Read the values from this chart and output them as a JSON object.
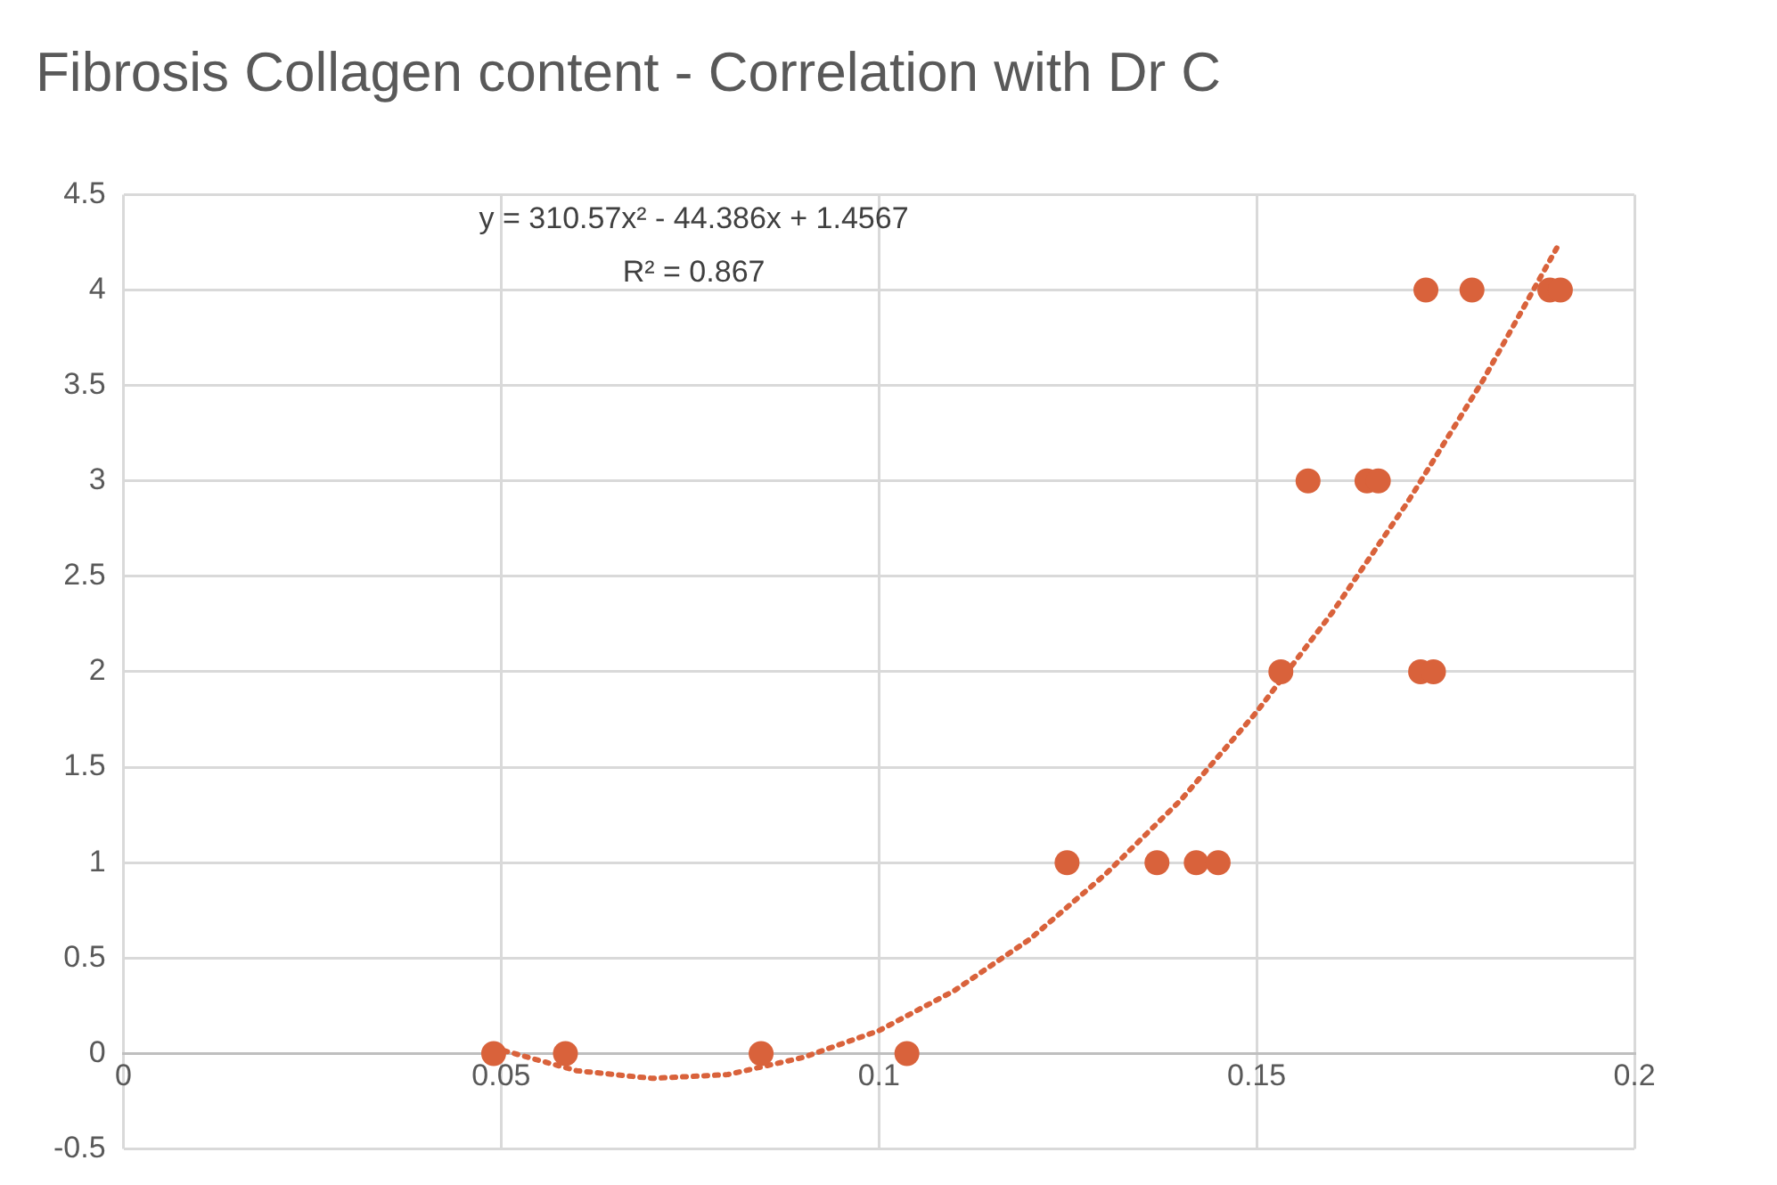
{
  "chart_data": {
    "type": "scatter",
    "title": "Fibrosis Collagen content - Correlation with Dr C",
    "xlim": [
      0,
      0.2
    ],
    "xticks": [
      0,
      0.05,
      0.1,
      0.15,
      0.2
    ],
    "ylim": [
      -0.5,
      4.5
    ],
    "yticks": [
      -0.5,
      0,
      0.5,
      1,
      1.5,
      2,
      2.5,
      3,
      3.5,
      4,
      4.5
    ],
    "grid": true,
    "legend": false,
    "marker": "circle",
    "annotations": [
      "y = 310.57x² - 44.386x + 1.4567",
      "R² = 0.867"
    ],
    "series": [
      {
        "color": "#d9623b",
        "x": [
          0.049,
          0.0585,
          0.0844,
          0.1037,
          0.1249,
          0.1368,
          0.142,
          0.1449,
          0.1532,
          0.1568,
          0.1646,
          0.1661,
          0.1717,
          0.1734,
          0.1724,
          0.1785,
          0.1888,
          0.1902
        ],
        "values": [
          0,
          0,
          0,
          0,
          1,
          1,
          1,
          1,
          2,
          3,
          3,
          3,
          2,
          2,
          4,
          4,
          4,
          4
        ]
      },
      {
        "type": "line",
        "color": "#d9623b",
        "line_style": "dotted",
        "marker": "none",
        "x": [
          0.049,
          0.06,
          0.07,
          0.08,
          0.09,
          0.1,
          0.11,
          0.12,
          0.13,
          0.14,
          0.15,
          0.16,
          0.17,
          0.18,
          0.19
        ],
        "values": [
          0.03,
          -0.09,
          -0.13,
          -0.11,
          -0.02,
          0.12,
          0.33,
          0.6,
          0.94,
          1.33,
          1.79,
          2.31,
          2.89,
          3.53,
          4.24
        ]
      }
    ]
  }
}
